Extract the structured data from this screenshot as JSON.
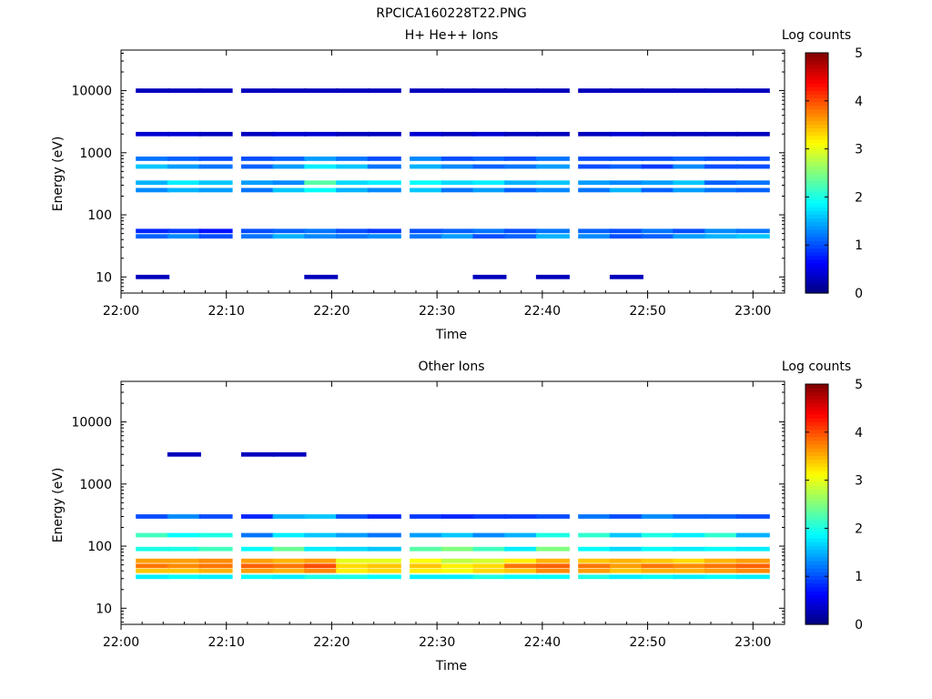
{
  "figure_title": "RPCICA160228T22.PNG",
  "chart_data": [
    {
      "type": "heatmap",
      "title": "H+ He++ Ions",
      "xlabel": "Time",
      "ylabel": "Energy (eV)",
      "x_tick_labels": [
        "22:00",
        "22:10",
        "22:20",
        "22:30",
        "22:40",
        "22:50",
        "23:00"
      ],
      "y_tick_labels": [
        "10",
        "100",
        "1000",
        "10000"
      ],
      "x_range_minutes": [
        0,
        63
      ],
      "y_scale": "log",
      "y_range": [
        5.5,
        45000
      ],
      "colorbar": {
        "label": "Log counts",
        "range": [
          0,
          5
        ],
        "tick_labels": [
          "0",
          "1",
          "2",
          "3",
          "4",
          "5"
        ]
      },
      "time_columns": [
        "22:03",
        "22:06",
        "22:09",
        "22:13",
        "22:16",
        "22:19",
        "22:22",
        "22:25",
        "22:29",
        "22:32",
        "22:35",
        "22:38",
        "22:41",
        "22:45",
        "22:48",
        "22:51",
        "22:54",
        "22:57",
        "23:00"
      ],
      "series": [
        {
          "energy_eV": 45,
          "log_counts": [
            1.1,
            1.3,
            1.0,
            1.2,
            1.5,
            1.3,
            1.2,
            1.3,
            1.2,
            1.4,
            1.0,
            1.1,
            1.5,
            1.3,
            1.0,
            1.1,
            1.4,
            1.5,
            1.6
          ]
        },
        {
          "energy_eV": 55,
          "log_counts": [
            0.8,
            0.9,
            0.7,
            1.0,
            1.1,
            1.2,
            1.0,
            0.9,
            1.0,
            1.1,
            1.2,
            1.0,
            1.2,
            1.1,
            1.0,
            1.2,
            1.0,
            1.3,
            1.2
          ]
        },
        {
          "energy_eV": 250,
          "log_counts": [
            1.3,
            1.5,
            1.4,
            1.2,
            1.6,
            1.9,
            1.5,
            1.3,
            1.6,
            1.2,
            1.4,
            1.1,
            1.3,
            1.2,
            1.5,
            1.1,
            1.4,
            1.2,
            1.1
          ]
        },
        {
          "energy_eV": 330,
          "log_counts": [
            1.5,
            1.8,
            1.6,
            1.4,
            1.3,
            2.3,
            1.7,
            1.8,
            1.9,
            1.7,
            1.8,
            1.5,
            1.6,
            1.4,
            1.3,
            1.4,
            1.6,
            1.1,
            1.2
          ]
        },
        {
          "energy_eV": 600,
          "log_counts": [
            1.6,
            1.4,
            1.2,
            1.1,
            1.4,
            1.8,
            1.6,
            1.2,
            1.5,
            1.3,
            1.1,
            1.2,
            1.4,
            1.0,
            1.1,
            0.9,
            1.3,
            1.0,
            1.0
          ]
        },
        {
          "energy_eV": 800,
          "log_counts": [
            1.2,
            1.1,
            1.0,
            1.0,
            1.1,
            1.4,
            1.2,
            1.0,
            1.3,
            1.0,
            1.1,
            1.0,
            1.2,
            1.0,
            1.0,
            1.0,
            1.1,
            1.0,
            1.0
          ]
        },
        {
          "energy_eV": 2000,
          "log_counts": [
            0.4,
            0.4,
            0.3,
            0.3,
            0.4,
            0.4,
            0.3,
            0.3,
            0.4,
            0.3,
            0.4,
            0.3,
            0.3,
            0.3,
            0.4,
            0.3,
            0.3,
            0.3,
            0.3
          ]
        },
        {
          "energy_eV": 10000,
          "log_counts": [
            0.3,
            0.3,
            0.3,
            0.3,
            0.3,
            0.3,
            0.3,
            0.3,
            0.3,
            0.3,
            0.3,
            0.3,
            0.3,
            0.3,
            0.3,
            0.3,
            0.3,
            0.3,
            0.3
          ]
        },
        {
          "energy_eV": 10,
          "log_counts": [
            0.3,
            null,
            null,
            null,
            null,
            0.3,
            null,
            null,
            null,
            null,
            0.3,
            null,
            0.3,
            null,
            0.3,
            null,
            null,
            null,
            null
          ]
        }
      ],
      "grid": false
    },
    {
      "type": "heatmap",
      "title": "Other Ions",
      "xlabel": "Time",
      "ylabel": "Energy (eV)",
      "x_tick_labels": [
        "22:00",
        "22:10",
        "22:20",
        "22:30",
        "22:40",
        "22:50",
        "23:00"
      ],
      "y_tick_labels": [
        "10",
        "100",
        "1000",
        "10000"
      ],
      "x_range_minutes": [
        0,
        63
      ],
      "y_scale": "log",
      "y_range": [
        5.5,
        45000
      ],
      "colorbar": {
        "label": "Log counts",
        "range": [
          0,
          5
        ],
        "tick_labels": [
          "0",
          "1",
          "2",
          "3",
          "4",
          "5"
        ]
      },
      "time_columns": [
        "22:03",
        "22:06",
        "22:09",
        "22:13",
        "22:16",
        "22:19",
        "22:22",
        "22:25",
        "22:29",
        "22:32",
        "22:35",
        "22:38",
        "22:41",
        "22:45",
        "22:48",
        "22:51",
        "22:54",
        "22:57",
        "23:00"
      ],
      "series": [
        {
          "energy_eV": 32,
          "log_counts": [
            1.8,
            1.9,
            1.8,
            1.9,
            1.8,
            2.0,
            2.0,
            1.9,
            1.8,
            1.8,
            2.0,
            1.9,
            1.9,
            2.0,
            1.8,
            1.9,
            1.8,
            1.9,
            1.8
          ]
        },
        {
          "energy_eV": 40,
          "log_counts": [
            3.4,
            3.4,
            3.5,
            3.6,
            3.5,
            3.7,
            3.2,
            3.3,
            3.2,
            3.1,
            3.3,
            3.4,
            3.7,
            3.6,
            3.4,
            3.5,
            3.5,
            3.6,
            3.7
          ]
        },
        {
          "energy_eV": 48,
          "log_counts": [
            3.8,
            3.7,
            3.8,
            3.9,
            3.8,
            4.0,
            3.3,
            3.4,
            3.4,
            3.2,
            3.3,
            3.8,
            3.9,
            3.8,
            3.6,
            3.8,
            3.7,
            3.8,
            3.9
          ]
        },
        {
          "energy_eV": 58,
          "log_counts": [
            3.6,
            3.6,
            3.7,
            3.6,
            3.5,
            3.6,
            3.0,
            3.0,
            3.1,
            2.8,
            2.9,
            3.2,
            3.5,
            3.4,
            3.5,
            3.4,
            3.3,
            3.5,
            3.6
          ]
        },
        {
          "energy_eV": 90,
          "log_counts": [
            2.0,
            2.0,
            2.2,
            1.9,
            2.4,
            1.8,
            1.7,
            1.6,
            2.3,
            2.5,
            2.2,
            1.8,
            2.5,
            1.9,
            1.7,
            1.9,
            1.8,
            1.9,
            1.8
          ]
        },
        {
          "energy_eV": 150,
          "log_counts": [
            2.2,
            1.9,
            2.0,
            1.2,
            1.8,
            1.6,
            1.4,
            1.2,
            1.4,
            1.6,
            1.3,
            1.5,
            2.0,
            2.1,
            1.6,
            2.0,
            1.8,
            2.1,
            1.5
          ]
        },
        {
          "energy_eV": 300,
          "log_counts": [
            1.0,
            1.3,
            1.0,
            0.8,
            1.5,
            1.6,
            1.0,
            0.8,
            0.9,
            0.8,
            0.9,
            0.9,
            1.0,
            1.2,
            1.0,
            1.3,
            1.1,
            1.1,
            1.0
          ]
        },
        {
          "energy_eV": 3000,
          "log_counts": [
            null,
            0.3,
            null,
            0.3,
            0.3,
            null,
            null,
            null,
            null,
            null,
            null,
            null,
            null,
            null,
            null,
            null,
            null,
            null,
            null
          ]
        }
      ],
      "grid": false
    }
  ]
}
